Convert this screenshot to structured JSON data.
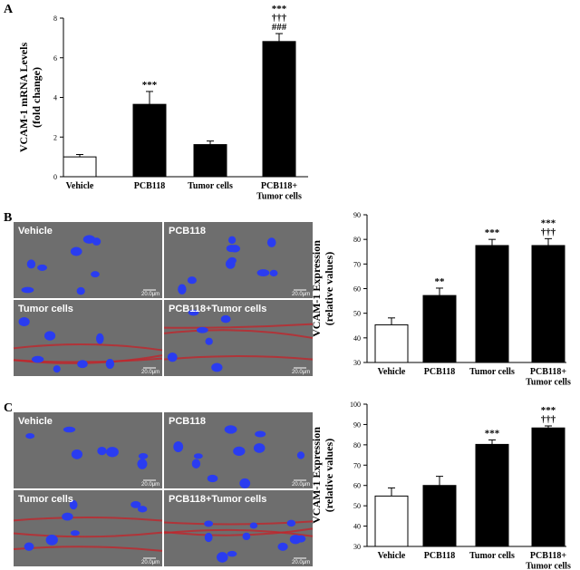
{
  "panel_labels": [
    "A",
    "B",
    "C"
  ],
  "images": [
    {
      "labels": [
        "Vehicle",
        "PCB118",
        "Tumor cells",
        "PCB118+Tumor cells"
      ],
      "scale_bar": "20.0μm"
    },
    {
      "labels": [
        "Vehicle",
        "PCB118",
        "Tumor cells",
        "PCB118+Tumor cells"
      ],
      "scale_bar": "20.0μm"
    }
  ],
  "chart_data": [
    {
      "type": "bar",
      "y_label": "VCAM-1 mRNA Levels\n(fold change)",
      "categories": [
        "Vehicle",
        "PCB118",
        "Tumor cells",
        "PCB118+\nTumor cells"
      ],
      "values": [
        1.0,
        3.65,
        1.62,
        6.82
      ],
      "errors": [
        0.12,
        0.65,
        0.18,
        0.4
      ],
      "colors": [
        "#ffffff",
        "#000000",
        "#000000",
        "#000000"
      ],
      "significance": [
        null,
        [
          "***"
        ],
        null,
        [
          "***",
          "†††",
          "###"
        ]
      ],
      "ylim": [
        0,
        8
      ],
      "yticks": [
        0,
        2,
        4,
        6,
        8
      ]
    },
    {
      "type": "bar",
      "y_label": "VCAM-1 Expression\n(relative values)",
      "categories": [
        "Vehicle",
        "PCB118",
        "Tumor cells",
        "PCB118+\nTumor cells"
      ],
      "values": [
        45.3,
        57.2,
        77.5,
        77.5
      ],
      "errors": [
        2.8,
        3.0,
        2.5,
        2.8
      ],
      "colors": [
        "#ffffff",
        "#000000",
        "#000000",
        "#000000"
      ],
      "significance": [
        null,
        [
          "**"
        ],
        [
          "***"
        ],
        [
          "***",
          "†††"
        ]
      ],
      "ylim": [
        30,
        90
      ],
      "yticks": [
        30,
        40,
        50,
        60,
        70,
        80,
        90
      ]
    },
    {
      "type": "bar",
      "y_label": "VCAM-1 Expression\n(relative values)",
      "categories": [
        "Vehicle",
        "PCB118",
        "Tumor cells",
        "PCB118+\nTumor cells"
      ],
      "values": [
        54.8,
        60.0,
        80.2,
        88.3
      ],
      "errors": [
        4.0,
        4.5,
        2.2,
        1.0
      ],
      "colors": [
        "#ffffff",
        "#000000",
        "#000000",
        "#000000"
      ],
      "significance": [
        null,
        null,
        [
          "***"
        ],
        [
          "***",
          "†††"
        ]
      ],
      "ylim": [
        30,
        100
      ],
      "yticks": [
        30,
        40,
        50,
        60,
        70,
        80,
        90,
        100
      ]
    }
  ]
}
